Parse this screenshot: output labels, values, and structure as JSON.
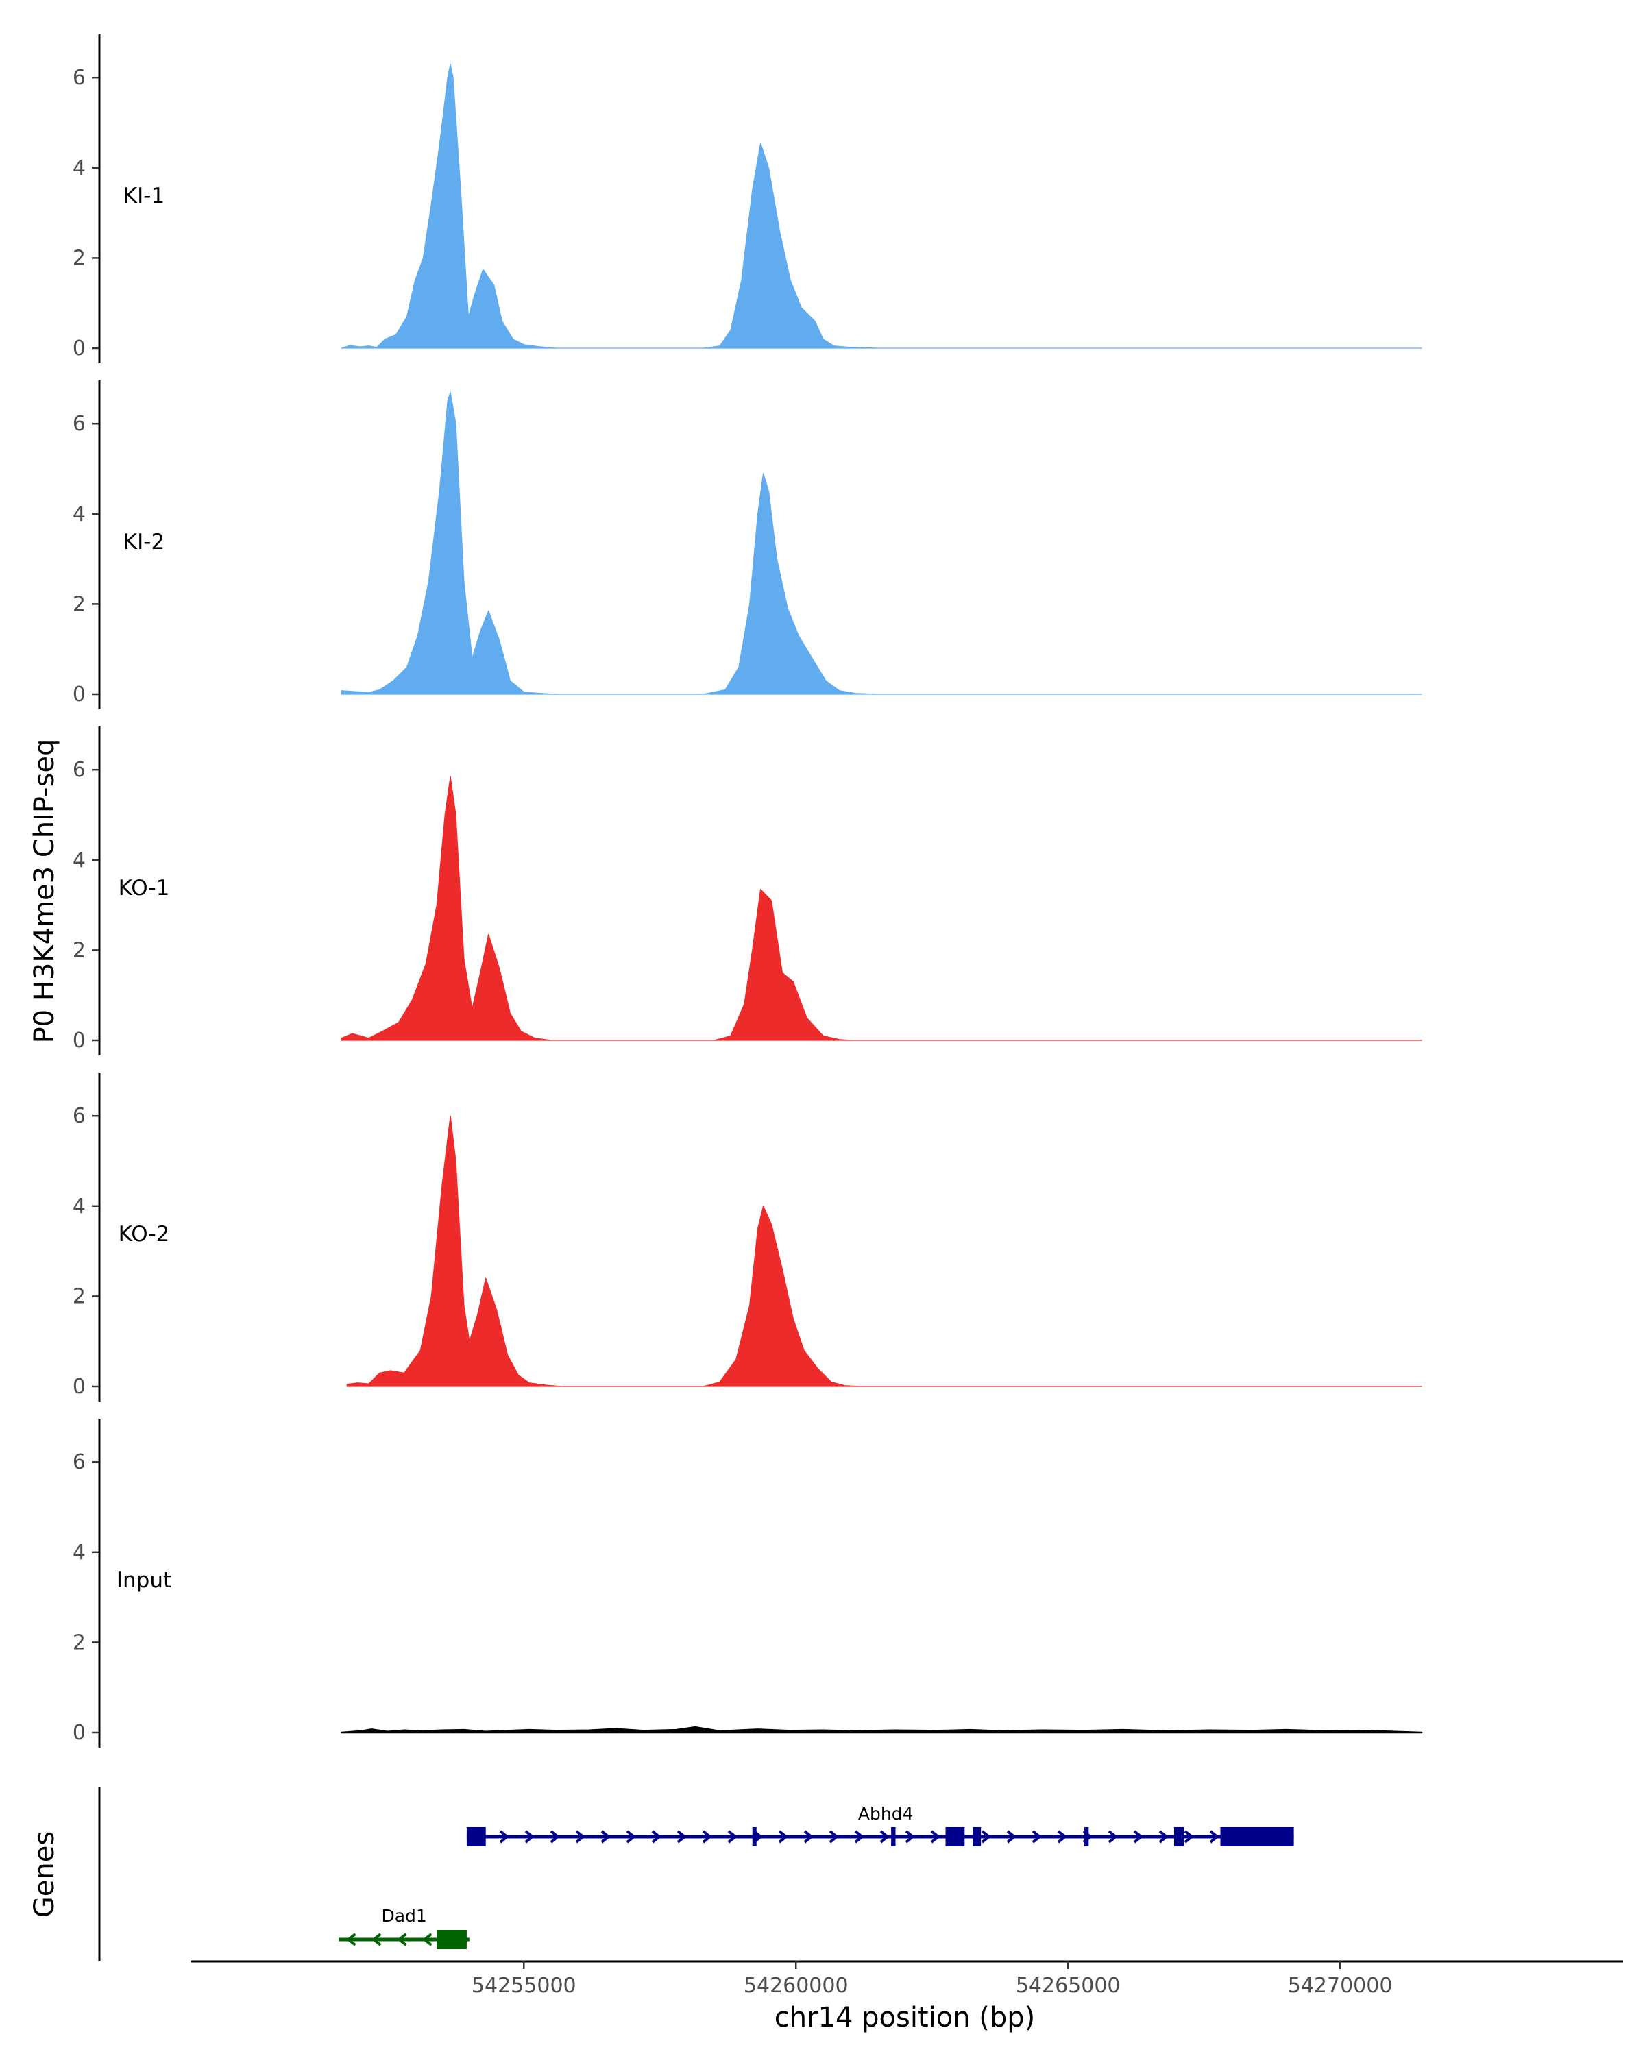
{
  "chart_data": {
    "type": "area",
    "ylabel": "P0 H3K4me3 ChIP-seq",
    "xlabel": "chr14 position (bp)",
    "xlim": [
      54248900,
      54275100
    ],
    "ylim": [
      0,
      7
    ],
    "yticks": [
      0,
      2,
      4,
      6
    ],
    "xticks": [
      54255000,
      54260000,
      54265000,
      54270000
    ],
    "colors": {
      "KI": "#61acee",
      "KO": "#ee2b2b",
      "Input": "#000000",
      "Abhd4": "#00008b",
      "Dad1": "#006400"
    },
    "tracks": [
      {
        "name": "KI-1",
        "group": "KI",
        "points": [
          [
            54251650,
            0
          ],
          [
            54251800,
            0.06
          ],
          [
            54252000,
            0.03
          ],
          [
            54252150,
            0.05
          ],
          [
            54252300,
            0.02
          ],
          [
            54252450,
            0.2
          ],
          [
            54252650,
            0.3
          ],
          [
            54252850,
            0.7
          ],
          [
            54253000,
            1.5
          ],
          [
            54253150,
            2.0
          ],
          [
            54253300,
            3.2
          ],
          [
            54253450,
            4.5
          ],
          [
            54253600,
            6.0
          ],
          [
            54253650,
            6.3
          ],
          [
            54253700,
            6.0
          ],
          [
            54253850,
            3.3
          ],
          [
            54253980,
            0.7
          ],
          [
            54254100,
            1.2
          ],
          [
            54254250,
            1.75
          ],
          [
            54254450,
            1.4
          ],
          [
            54254600,
            0.6
          ],
          [
            54254800,
            0.2
          ],
          [
            54255000,
            0.08
          ],
          [
            54255300,
            0.03
          ],
          [
            54255600,
            0
          ],
          [
            54258300,
            0
          ],
          [
            54258600,
            0.05
          ],
          [
            54258800,
            0.4
          ],
          [
            54259000,
            1.5
          ],
          [
            54259200,
            3.5
          ],
          [
            54259350,
            4.55
          ],
          [
            54259500,
            4.0
          ],
          [
            54259700,
            2.6
          ],
          [
            54259900,
            1.5
          ],
          [
            54260100,
            0.9
          ],
          [
            54260350,
            0.6
          ],
          [
            54260500,
            0.2
          ],
          [
            54260700,
            0.05
          ],
          [
            54261000,
            0.02
          ],
          [
            54261500,
            0
          ],
          [
            54271500,
            0
          ]
        ]
      },
      {
        "name": "KI-2",
        "group": "KI",
        "points": [
          [
            54251650,
            0.08
          ],
          [
            54251900,
            0.06
          ],
          [
            54252150,
            0.04
          ],
          [
            54252350,
            0.1
          ],
          [
            54252600,
            0.3
          ],
          [
            54252850,
            0.6
          ],
          [
            54253050,
            1.3
          ],
          [
            54253250,
            2.5
          ],
          [
            54253450,
            4.5
          ],
          [
            54253600,
            6.5
          ],
          [
            54253650,
            6.7
          ],
          [
            54253750,
            6.0
          ],
          [
            54253900,
            2.5
          ],
          [
            54254050,
            0.8
          ],
          [
            54254200,
            1.4
          ],
          [
            54254350,
            1.85
          ],
          [
            54254550,
            1.2
          ],
          [
            54254750,
            0.3
          ],
          [
            54255000,
            0.05
          ],
          [
            54255300,
            0.02
          ],
          [
            54255600,
            0
          ],
          [
            54258300,
            0
          ],
          [
            54258700,
            0.1
          ],
          [
            54258950,
            0.6
          ],
          [
            54259150,
            2.0
          ],
          [
            54259300,
            4.0
          ],
          [
            54259400,
            4.9
          ],
          [
            54259500,
            4.5
          ],
          [
            54259650,
            3.0
          ],
          [
            54259850,
            1.9
          ],
          [
            54260050,
            1.3
          ],
          [
            54260300,
            0.8
          ],
          [
            54260550,
            0.3
          ],
          [
            54260800,
            0.08
          ],
          [
            54261100,
            0.02
          ],
          [
            54261500,
            0
          ],
          [
            54271500,
            0
          ]
        ]
      },
      {
        "name": "KO-1",
        "group": "KO",
        "points": [
          [
            54251650,
            0.05
          ],
          [
            54251850,
            0.15
          ],
          [
            54252000,
            0.1
          ],
          [
            54252150,
            0.05
          ],
          [
            54252400,
            0.2
          ],
          [
            54252700,
            0.4
          ],
          [
            54252950,
            0.9
          ],
          [
            54253200,
            1.7
          ],
          [
            54253400,
            3.0
          ],
          [
            54253550,
            5.0
          ],
          [
            54253650,
            5.85
          ],
          [
            54253750,
            5.0
          ],
          [
            54253900,
            1.8
          ],
          [
            54254050,
            0.7
          ],
          [
            54254200,
            1.5
          ],
          [
            54254350,
            2.35
          ],
          [
            54254550,
            1.6
          ],
          [
            54254750,
            0.6
          ],
          [
            54254950,
            0.2
          ],
          [
            54255200,
            0.05
          ],
          [
            54255500,
            0
          ],
          [
            54258500,
            0
          ],
          [
            54258800,
            0.1
          ],
          [
            54259050,
            0.8
          ],
          [
            54259200,
            2.0
          ],
          [
            54259350,
            3.35
          ],
          [
            54259550,
            3.1
          ],
          [
            54259750,
            1.5
          ],
          [
            54259950,
            1.3
          ],
          [
            54260200,
            0.5
          ],
          [
            54260500,
            0.1
          ],
          [
            54260800,
            0.02
          ],
          [
            54261000,
            0
          ],
          [
            54271500,
            0
          ]
        ]
      },
      {
        "name": "KO-2",
        "group": "KO",
        "points": [
          [
            54251750,
            0.05
          ],
          [
            54251950,
            0.08
          ],
          [
            54252150,
            0.06
          ],
          [
            54252350,
            0.3
          ],
          [
            54252550,
            0.35
          ],
          [
            54252800,
            0.3
          ],
          [
            54253100,
            0.8
          ],
          [
            54253300,
            2.0
          ],
          [
            54253500,
            4.5
          ],
          [
            54253650,
            6.0
          ],
          [
            54253750,
            5.0
          ],
          [
            54253900,
            1.8
          ],
          [
            54254000,
            1.0
          ],
          [
            54254150,
            1.6
          ],
          [
            54254300,
            2.4
          ],
          [
            54254500,
            1.7
          ],
          [
            54254700,
            0.7
          ],
          [
            54254900,
            0.25
          ],
          [
            54255100,
            0.08
          ],
          [
            54255400,
            0.03
          ],
          [
            54255700,
            0
          ],
          [
            54258300,
            0
          ],
          [
            54258600,
            0.1
          ],
          [
            54258900,
            0.6
          ],
          [
            54259150,
            1.8
          ],
          [
            54259300,
            3.5
          ],
          [
            54259400,
            4.0
          ],
          [
            54259550,
            3.6
          ],
          [
            54259750,
            2.6
          ],
          [
            54259950,
            1.5
          ],
          [
            54260150,
            0.8
          ],
          [
            54260400,
            0.4
          ],
          [
            54260650,
            0.1
          ],
          [
            54260900,
            0.02
          ],
          [
            54261200,
            0
          ],
          [
            54271500,
            0
          ]
        ]
      },
      {
        "name": "Input",
        "group": "Input",
        "points": [
          [
            54251650,
            0
          ],
          [
            54252000,
            0.03
          ],
          [
            54252200,
            0.07
          ],
          [
            54252500,
            0.02
          ],
          [
            54252800,
            0.05
          ],
          [
            54253100,
            0.03
          ],
          [
            54253500,
            0.05
          ],
          [
            54253900,
            0.06
          ],
          [
            54254300,
            0.02
          ],
          [
            54254700,
            0.04
          ],
          [
            54255100,
            0.06
          ],
          [
            54255600,
            0.04
          ],
          [
            54256200,
            0.05
          ],
          [
            54256700,
            0.08
          ],
          [
            54257200,
            0.04
          ],
          [
            54257800,
            0.06
          ],
          [
            54258150,
            0.12
          ],
          [
            54258600,
            0.03
          ],
          [
            54259300,
            0.07
          ],
          [
            54259900,
            0.04
          ],
          [
            54260500,
            0.05
          ],
          [
            54261100,
            0.03
          ],
          [
            54261800,
            0.05
          ],
          [
            54262600,
            0.04
          ],
          [
            54263200,
            0.06
          ],
          [
            54263800,
            0.03
          ],
          [
            54264500,
            0.05
          ],
          [
            54265300,
            0.04
          ],
          [
            54266000,
            0.06
          ],
          [
            54266800,
            0.03
          ],
          [
            54267600,
            0.05
          ],
          [
            54268400,
            0.04
          ],
          [
            54269000,
            0.06
          ],
          [
            54269800,
            0.03
          ],
          [
            54270500,
            0.04
          ],
          [
            54271500,
            0
          ]
        ]
      }
    ],
    "genes": [
      {
        "name": "Abhd4",
        "strand": "+",
        "start": 54253950,
        "end": 54269150,
        "exons": [
          [
            54253950,
            54254300
          ],
          [
            54259200,
            54259260
          ],
          [
            54261750,
            54261830
          ],
          [
            54262750,
            54263100
          ],
          [
            54263250,
            54263400
          ],
          [
            54265300,
            54265380
          ],
          [
            54266950,
            54267130
          ],
          [
            54267800,
            54269150
          ]
        ]
      },
      {
        "name": "Dad1",
        "strand": "-",
        "start": 54251600,
        "end": 54254000,
        "exons": [
          [
            54253400,
            54253950
          ]
        ]
      }
    ],
    "genes_label": "Genes"
  }
}
